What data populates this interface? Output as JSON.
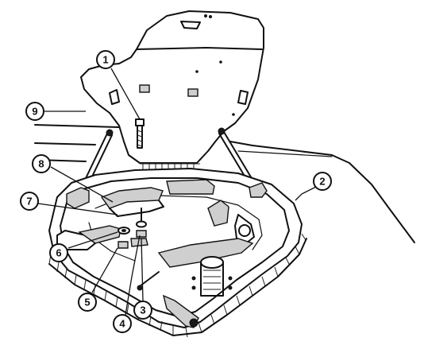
{
  "callouts": [
    {
      "id": "1",
      "label": "1"
    },
    {
      "id": "2",
      "label": "2"
    },
    {
      "id": "3",
      "label": "3"
    },
    {
      "id": "4",
      "label": "4"
    },
    {
      "id": "5",
      "label": "5"
    },
    {
      "id": "6",
      "label": "6"
    },
    {
      "id": "7",
      "label": "7"
    },
    {
      "id": "8",
      "label": "8"
    },
    {
      "id": "9",
      "label": "9"
    }
  ]
}
